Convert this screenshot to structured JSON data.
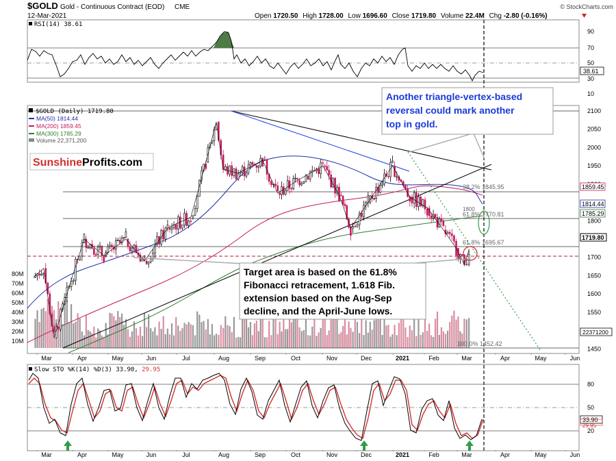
{
  "header": {
    "symbol": "$GOLD",
    "name": "Gold - Continuous Contract (EOD)",
    "exchange": "CME",
    "date": "12-Mar-2021",
    "open_label": "Open",
    "open": "1720.50",
    "high_label": "High",
    "high": "1728.00",
    "low_label": "Low",
    "low": "1696.60",
    "close_label": "Close",
    "close": "1719.80",
    "volume_label": "Volume",
    "volume": "22.4M",
    "chg_label": "Chg",
    "chg": "-2.80 (-0.16%)",
    "copyright": "© StockCharts.com"
  },
  "rsi_panel": {
    "label": "RSI(14) 38.61",
    "last_badge": "38.61",
    "ticks": [
      "90",
      "70",
      "50",
      "30",
      "10"
    ]
  },
  "price_panel": {
    "legend": [
      {
        "text": "$GOLD (Daily) 1719.80",
        "color": "#000000"
      },
      {
        "text": "MA(50) 1814.44",
        "color": "#1f2fa8"
      },
      {
        "text": "MA(200) 1859.45",
        "color": "#c2185b"
      },
      {
        "text": "MA(300) 1785.29",
        "color": "#2e7d32"
      },
      {
        "text": "Volume 22,371,200",
        "color": "#888888"
      }
    ],
    "brand": {
      "part1": "Sunshine",
      "part2": "Profits.com"
    },
    "price_ticks": [
      "2100",
      "2050",
      "2000",
      "1950",
      "1900",
      "1850",
      "1800",
      "1750",
      "1700",
      "1650",
      "1600",
      "1550",
      "1500",
      "1450"
    ],
    "volume_ticks": [
      "80M",
      "70M",
      "60M",
      "50M",
      "40M",
      "30M",
      "20M",
      "10M"
    ],
    "fib_labels": [
      "38.2% 1845.95",
      "61.8% 1770.81",
      "1800",
      "61.8% 1695.67",
      "100.0% 1452.42"
    ],
    "badges": {
      "ma200": "1859.45",
      "ma50": "1814.44",
      "ma300": "1785.29",
      "close": "1719.80",
      "volume": "22371200"
    },
    "annotation_top": "Another triangle-vertex-based reversal could mark another top in gold.",
    "annotation_bottom": "Target area is based on the 61.8% Fibonacci retracement, 1.618 Fib. extension based on the Aug-Sep decline, and the April-June lows."
  },
  "sto_panel": {
    "label_main": "Slow STO %K(14) %D(3) 33.90,",
    "label_d": "29.95",
    "badge_k": "33.90",
    "badge_d": "29.95",
    "ticks": [
      "80",
      "50",
      "20"
    ]
  },
  "x_axis": {
    "labels": [
      "Mar",
      "Apr",
      "May",
      "Jun",
      "Jul",
      "Aug",
      "Sep",
      "Oct",
      "Nov",
      "Dec",
      "2021",
      "Feb",
      "Mar",
      "Apr",
      "May",
      "Jun"
    ]
  },
  "chart_data": {
    "type": "line",
    "title": "$GOLD Gold - Continuous Contract (EOD) CME",
    "xlabel": "",
    "ylabel": "",
    "ylim": [
      1430,
      2130
    ],
    "grid": false,
    "x": [
      "2020-03-01",
      "2020-03-10",
      "2020-03-19",
      "2020-04-01",
      "2020-04-14",
      "2020-05-01",
      "2020-05-20",
      "2020-06-05",
      "2020-06-25",
      "2020-07-15",
      "2020-07-28",
      "2020-08-06",
      "2020-08-12",
      "2020-08-25",
      "2020-09-15",
      "2020-09-28",
      "2020-10-15",
      "2020-11-06",
      "2020-11-20",
      "2020-11-30",
      "2020-12-15",
      "2021-01-05",
      "2021-01-20",
      "2021-02-04",
      "2021-02-18",
      "2021-03-01",
      "2021-03-08",
      "2021-03-12"
    ],
    "series": [
      {
        "name": "$GOLD (Daily)",
        "values": [
          1645,
          1670,
          1480,
          1620,
          1750,
          1705,
          1750,
          1690,
          1780,
          1810,
          1960,
          2070,
          1940,
          1930,
          1965,
          1875,
          1910,
          1950,
          1870,
          1780,
          1850,
          1950,
          1865,
          1835,
          1775,
          1725,
          1680,
          1719.8
        ]
      }
    ],
    "ma50_last": 1814.44,
    "ma200_last": 1859.45,
    "ma300_last": 1785.29,
    "rsi_last": 38.61,
    "stoch_k_last": 33.9,
    "stoch_d_last": 29.95,
    "fib_levels": [
      1845.95,
      1770.81,
      1695.67,
      1452.42
    ]
  }
}
